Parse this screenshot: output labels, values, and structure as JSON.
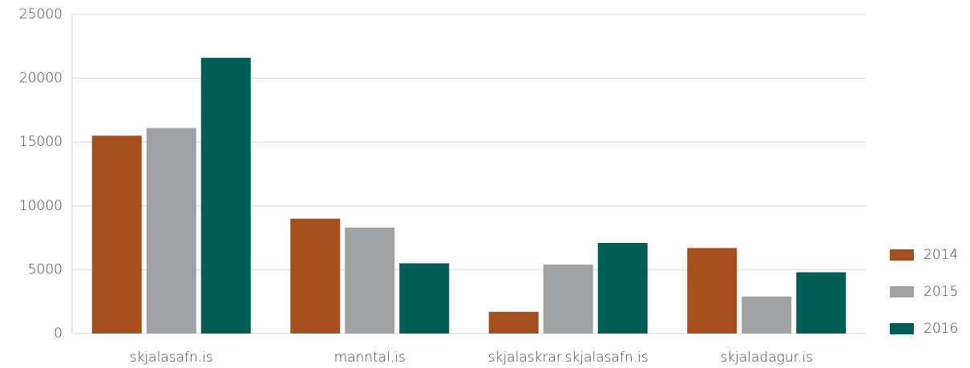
{
  "chart_data": {
    "type": "bar",
    "categories": [
      "skjalasafn.is",
      "manntal.is",
      "skjalaskrar.skjalasafn.is",
      "skjaladagur.is"
    ],
    "series": [
      {
        "name": "2014",
        "color": "#a64f1e",
        "values": [
          15500,
          9000,
          1700,
          6700
        ]
      },
      {
        "name": "2015",
        "color": "#a0a1a3",
        "values": [
          16100,
          8300,
          5400,
          2900
        ]
      },
      {
        "name": "2016",
        "color": "#005e55",
        "values": [
          21600,
          5500,
          7100,
          4800
        ]
      }
    ],
    "ylim": [
      0,
      25000
    ],
    "yticks": [
      0,
      5000,
      10000,
      15000,
      20000,
      25000
    ],
    "grid": true,
    "legend": "right"
  }
}
